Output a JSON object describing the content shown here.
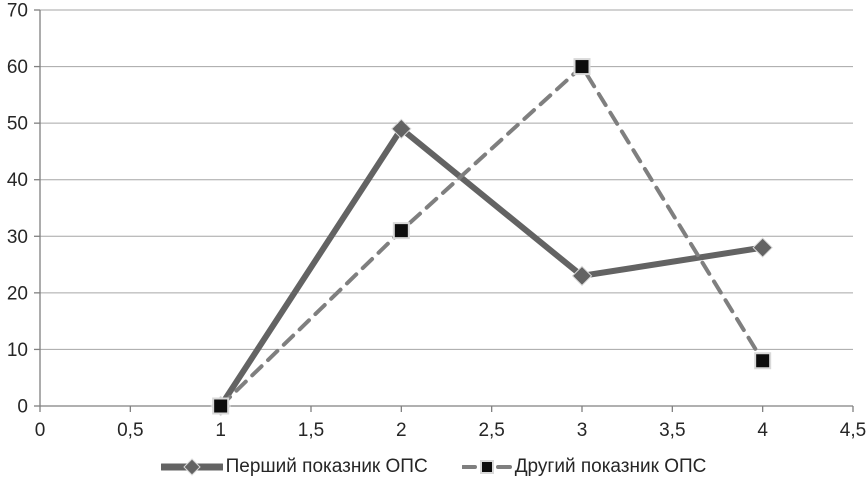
{
  "chart_data": {
    "type": "line",
    "x": [
      1,
      2,
      3,
      4
    ],
    "series": [
      {
        "name": "Перший показник ОПС",
        "values": [
          0,
          49,
          23,
          28
        ],
        "line_style": "solid",
        "line_width": 6,
        "line_color": "#636363",
        "marker": "diamond",
        "marker_color": "#636363",
        "marker_edge_color": "#d9d9d9"
      },
      {
        "name": "Другий показник ОПС",
        "values": [
          0,
          31,
          60,
          8
        ],
        "line_style": "dashed",
        "line_width": 4,
        "line_color": "#7f7f7f",
        "marker": "square",
        "marker_color": "#0d0d0d",
        "marker_edge_color": "#d9d9d9"
      }
    ],
    "title": "",
    "xlabel": "",
    "ylabel": "",
    "xlim": [
      0,
      4.5
    ],
    "ylim": [
      0,
      70
    ],
    "x_tick_values": [
      0,
      0.5,
      1,
      1.5,
      2,
      2.5,
      3,
      3.5,
      4,
      4.5
    ],
    "x_tick_labels": [
      "0",
      "0,5",
      "1",
      "1,5",
      "2",
      "2,5",
      "3",
      "3,5",
      "4",
      "4,5"
    ],
    "y_tick_values": [
      0,
      10,
      20,
      30,
      40,
      50,
      60,
      70
    ],
    "y_tick_labels": [
      "0",
      "10",
      "20",
      "30",
      "40",
      "50",
      "60",
      "70"
    ],
    "grid": "horizontal",
    "grid_color": "#a6a6a6",
    "axis_color": "#808080",
    "text_color": "#262626",
    "legend_position": "bottom"
  }
}
